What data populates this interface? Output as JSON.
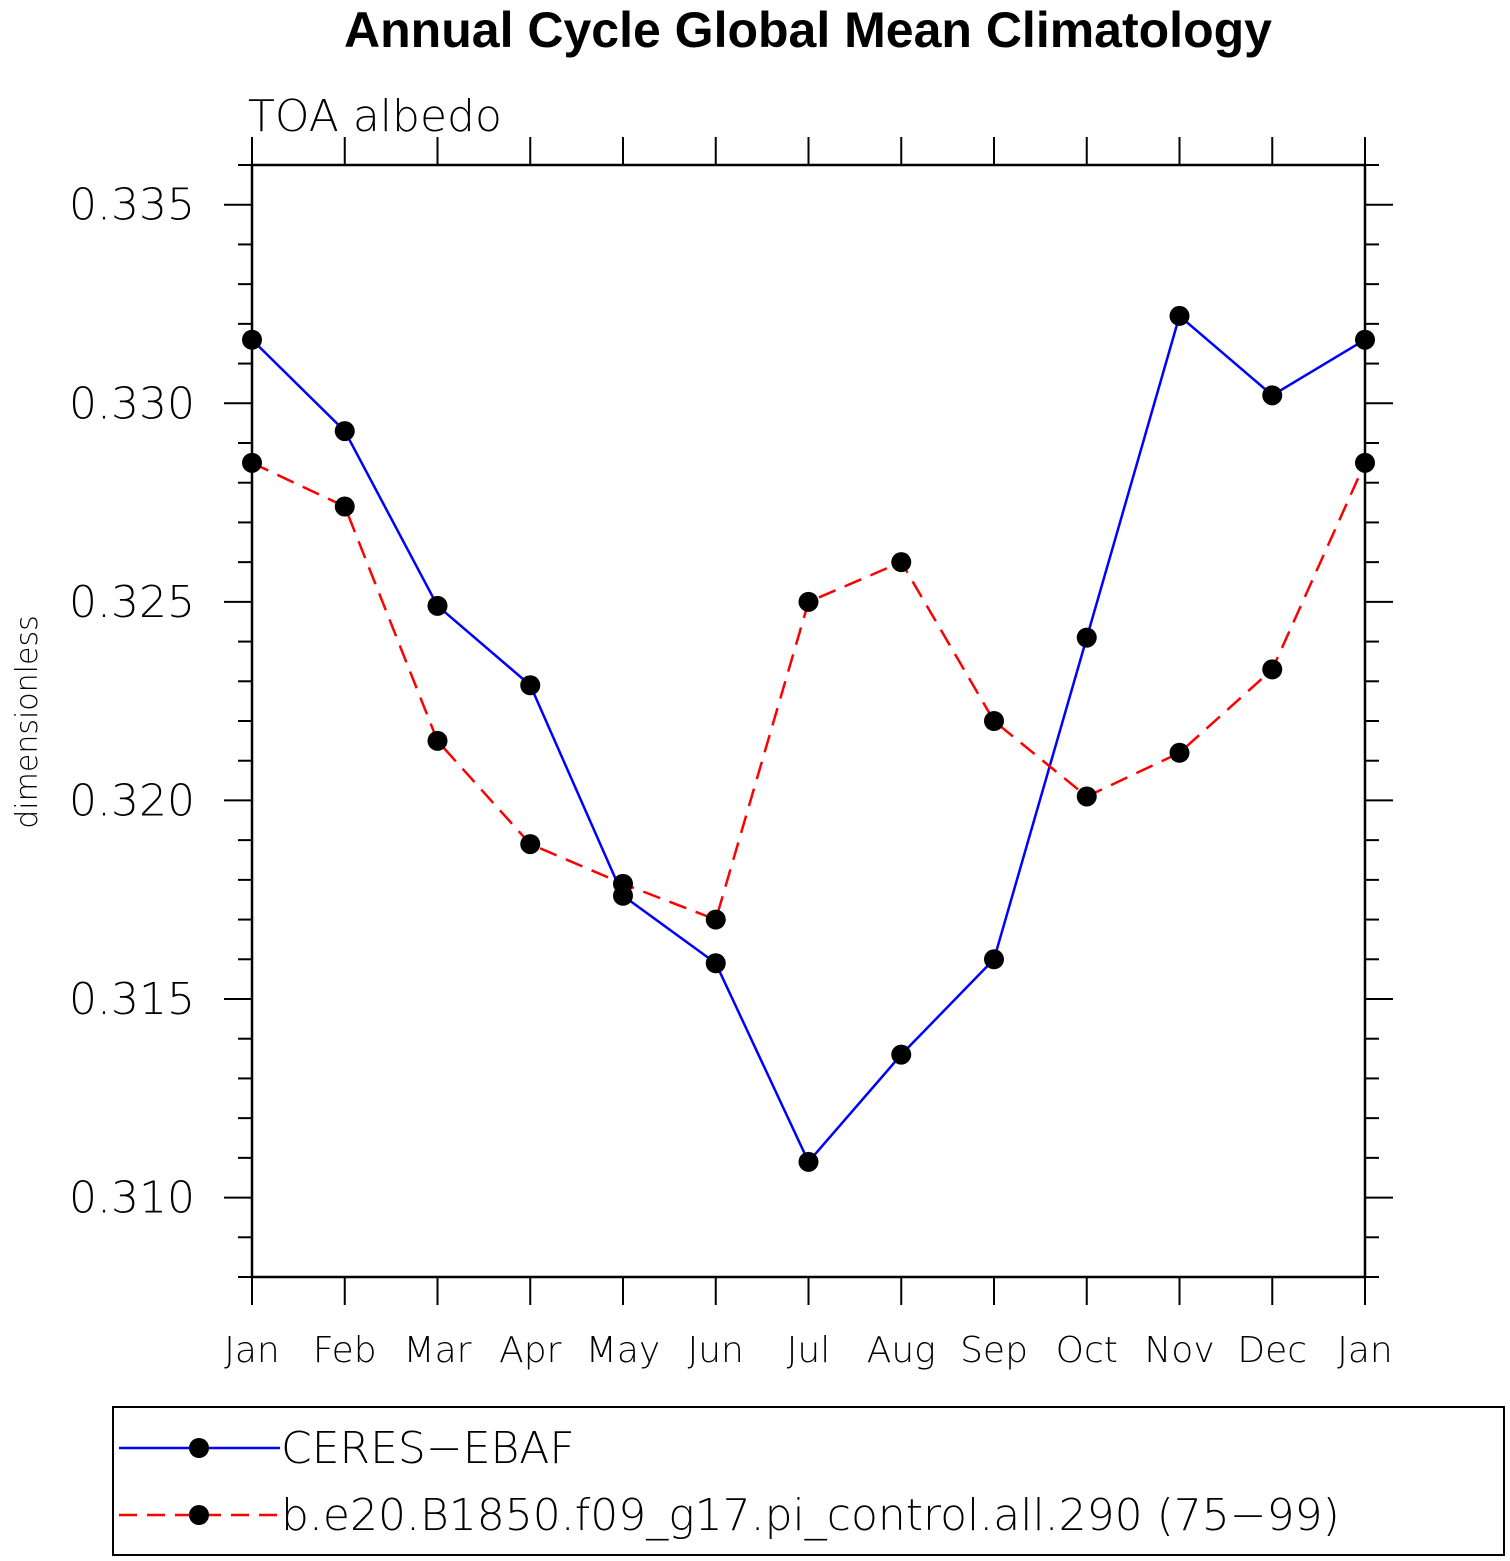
{
  "chart_data": {
    "type": "line",
    "title": "Annual Cycle Global Mean Climatology",
    "subtitle": "TOA albedo",
    "xlabel": "",
    "ylabel": "dimensionless",
    "categories": [
      "Jan",
      "Feb",
      "Mar",
      "Apr",
      "May",
      "Jun",
      "Jul",
      "Aug",
      "Sep",
      "Oct",
      "Nov",
      "Dec",
      "Jan"
    ],
    "yticks": [
      "0.310",
      "0.315",
      "0.320",
      "0.325",
      "0.330",
      "0.335"
    ],
    "ylim": [
      0.308,
      0.336
    ],
    "grid": false,
    "legend_position": "bottom",
    "series": [
      {
        "name": "CERES−EBAF",
        "color": "#0000ff",
        "line_style": "solid",
        "marker": "filled-circle",
        "values": [
          0.3316,
          0.3293,
          0.3249,
          0.3229,
          0.3176,
          0.3159,
          0.3109,
          0.3136,
          0.316,
          0.3241,
          0.3322,
          0.3302,
          0.3316
        ]
      },
      {
        "name": "b.e20.B1850.f09_g17.pi_control.all.290 (75−99)",
        "color": "#ff0000",
        "line_style": "dashed",
        "marker": "filled-circle",
        "values": [
          0.3285,
          0.3274,
          0.3215,
          0.3189,
          0.3179,
          0.317,
          0.325,
          0.326,
          0.322,
          0.3201,
          0.3212,
          0.3233,
          0.3285
        ]
      }
    ]
  }
}
